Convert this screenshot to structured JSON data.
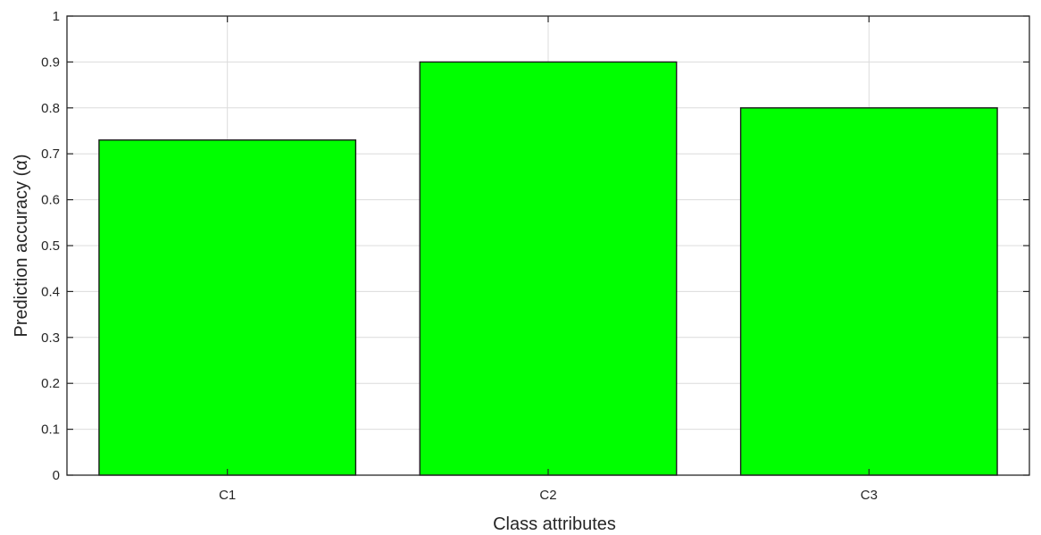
{
  "chart_data": {
    "type": "bar",
    "categories": [
      "C1",
      "C2",
      "C3"
    ],
    "values": [
      0.73,
      0.9,
      0.8
    ],
    "title": "",
    "xlabel": "Class attributes",
    "ylabel": "Prediction accuracy (α)",
    "ylim": [
      0,
      1
    ],
    "yticks": [
      "0",
      "0.1",
      "0.2",
      "0.3",
      "0.4",
      "0.5",
      "0.6",
      "0.7",
      "0.8",
      "0.9",
      "1"
    ],
    "grid": true,
    "bar_color": "#00ff00",
    "bar_edge_color": "#1a1a1a"
  }
}
